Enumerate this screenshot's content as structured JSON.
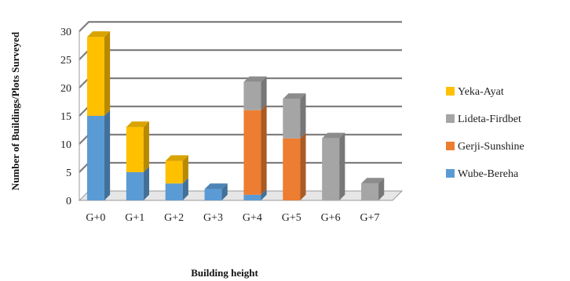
{
  "chart_data": {
    "type": "bar",
    "stacked": true,
    "three_d": true,
    "title": "",
    "xlabel": "Building height",
    "ylabel": "Number of Buildings/Plots Surveyed",
    "ylim": [
      0,
      30
    ],
    "yticks": [
      0,
      5,
      10,
      15,
      20,
      25,
      30
    ],
    "grid": true,
    "legend_position": "right",
    "categories": [
      "G+0",
      "G+1",
      "G+2",
      "G+3",
      "G+4",
      "G+5",
      "G+6",
      "G+7"
    ],
    "series": [
      {
        "name": "Wube-Bereha",
        "color": "#5b9bd5",
        "values": [
          15,
          5,
          3,
          2,
          1,
          0,
          0,
          0
        ]
      },
      {
        "name": "Gerji-Sunshine",
        "color": "#ed7d31",
        "values": [
          0,
          0,
          0,
          0,
          15,
          11,
          0,
          0
        ]
      },
      {
        "name": "Lideta-Firdbet",
        "color": "#a5a5a5",
        "values": [
          0,
          0,
          0,
          0,
          5,
          7,
          11,
          3
        ]
      },
      {
        "name": "Yeka-Ayat",
        "color": "#ffc000",
        "values": [
          14,
          8,
          4,
          0,
          0,
          0,
          0,
          0
        ]
      }
    ],
    "legend_order": [
      "Yeka-Ayat",
      "Lideta-Firdbet",
      "Gerji-Sunshine",
      "Wube-Bereha"
    ]
  }
}
